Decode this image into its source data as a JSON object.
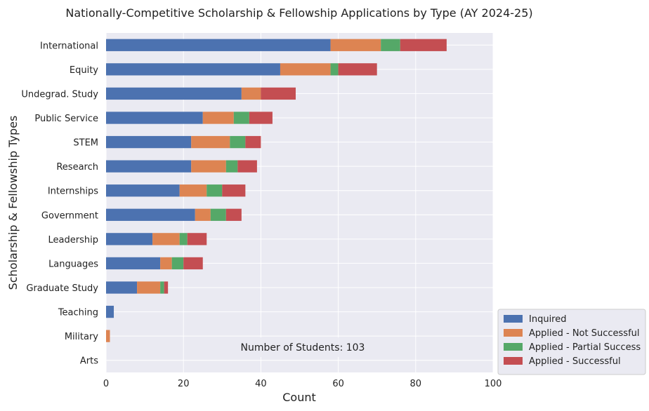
{
  "chart_data": {
    "type": "bar",
    "orientation": "horizontal",
    "stacked": true,
    "title": "Nationally-Competitive Scholarship & Fellowship Applications by Type (AY 2024-25)",
    "xlabel": "Count",
    "ylabel": "Scholarship & Fellowship Types",
    "xlim": [
      0,
      100
    ],
    "xticks": [
      0,
      20,
      40,
      60,
      80,
      100
    ],
    "grid": true,
    "categories": [
      "International",
      "Equity",
      "Undegrad. Study",
      "Public Service",
      "STEM",
      "Research",
      "Internships",
      "Government",
      "Leadership",
      "Languages",
      "Graduate Study",
      "Teaching",
      "Military",
      "Arts"
    ],
    "series": [
      {
        "name": "Inquired",
        "color": "#4c72b0",
        "values": [
          58,
          45,
          35,
          25,
          22,
          22,
          19,
          23,
          12,
          14,
          8,
          2,
          0,
          0
        ]
      },
      {
        "name": "Applied - Not Successful",
        "color": "#dd8452",
        "values": [
          13,
          13,
          5,
          8,
          10,
          9,
          7,
          4,
          7,
          3,
          6,
          0,
          1,
          0
        ]
      },
      {
        "name": "Applied - Partial Success",
        "color": "#55a868",
        "values": [
          5,
          2,
          0,
          4,
          4,
          3,
          4,
          4,
          2,
          3,
          1,
          0,
          0,
          0
        ]
      },
      {
        "name": "Applied - Successful",
        "color": "#c44e52",
        "values": [
          12,
          10,
          9,
          6,
          4,
          5,
          6,
          4,
          5,
          5,
          1,
          0,
          0,
          0
        ]
      }
    ],
    "annotation": "Number of Students: 103",
    "legend_position": "outside-bottom-right"
  }
}
